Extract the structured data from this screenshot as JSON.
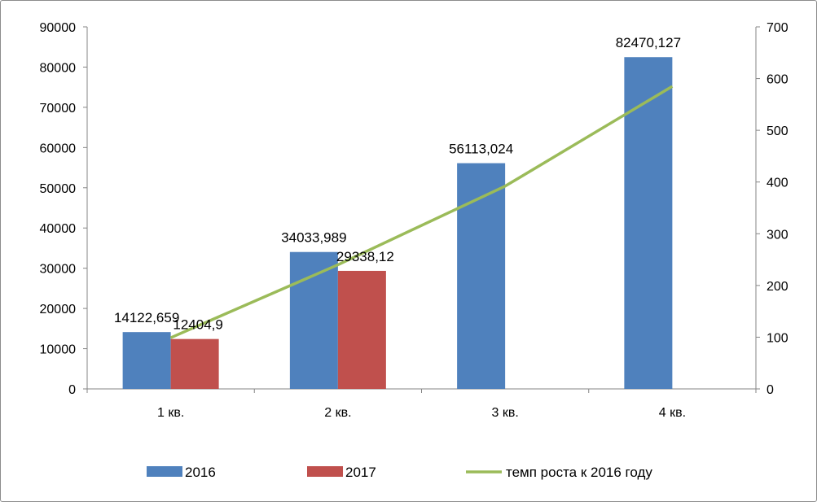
{
  "chart_data": {
    "type": "bar",
    "categories": [
      "1 кв.",
      "2 кв.",
      "3 кв.",
      "4 кв."
    ],
    "series": [
      {
        "name": "2016",
        "type": "bar",
        "axis": "left",
        "color": "#4f81bd",
        "values": [
          14122.659,
          34033.989,
          56113.024,
          82470.127
        ],
        "labels": [
          "14122,659",
          "34033,989",
          "56113,024",
          "82470,127"
        ]
      },
      {
        "name": "2017",
        "type": "bar",
        "axis": "left",
        "color": "#c0504d",
        "values": [
          12404.9,
          29338.12,
          null,
          null
        ],
        "labels": [
          "12404,9",
          "29338,12",
          "",
          ""
        ]
      },
      {
        "name": "темп роста к  2016 году",
        "type": "line",
        "axis": "right",
        "color": "#9bbb59",
        "values": [
          99,
          240,
          392,
          585
        ]
      }
    ],
    "yleft": {
      "min": 0,
      "max": 90000,
      "ticks": [
        "0",
        "10000",
        "20000",
        "30000",
        "40000",
        "50000",
        "60000",
        "70000",
        "80000",
        "90000"
      ]
    },
    "yright": {
      "min": 0,
      "max": 700,
      "ticks": [
        "0",
        "100",
        "200",
        "300",
        "400",
        "500",
        "600",
        "700"
      ]
    },
    "grid": false,
    "legend": "bottom"
  }
}
